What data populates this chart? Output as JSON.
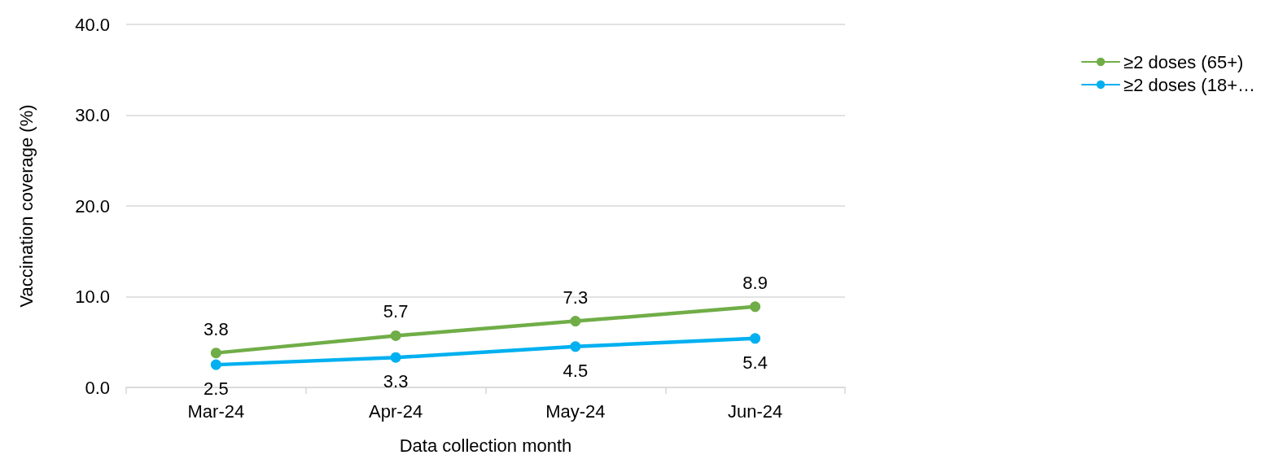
{
  "chart_data": {
    "type": "line",
    "xlabel": "Data collection month",
    "ylabel": "Vaccination coverage (%)",
    "categories": [
      "Mar-24",
      "Apr-24",
      "May-24",
      "Jun-24"
    ],
    "series": [
      {
        "name": "≥2 doses (65+)",
        "color": "#70ad47",
        "values": [
          3.8,
          5.7,
          7.3,
          8.9
        ]
      },
      {
        "name": "≥2 doses (18+…",
        "color": "#00b0f0",
        "values": [
          2.5,
          3.3,
          4.5,
          5.4
        ]
      }
    ],
    "ylim": [
      0,
      40
    ],
    "yticks": [
      {
        "value": 0,
        "label": "0.0"
      },
      {
        "value": 10,
        "label": "10.0"
      },
      {
        "value": 20,
        "label": "20.0"
      },
      {
        "value": 30,
        "label": "30.0"
      },
      {
        "value": 40,
        "label": "40.0"
      }
    ],
    "grid": "y",
    "legend": "right",
    "marker": "circle",
    "line_style": "solid",
    "data_labels": true
  }
}
